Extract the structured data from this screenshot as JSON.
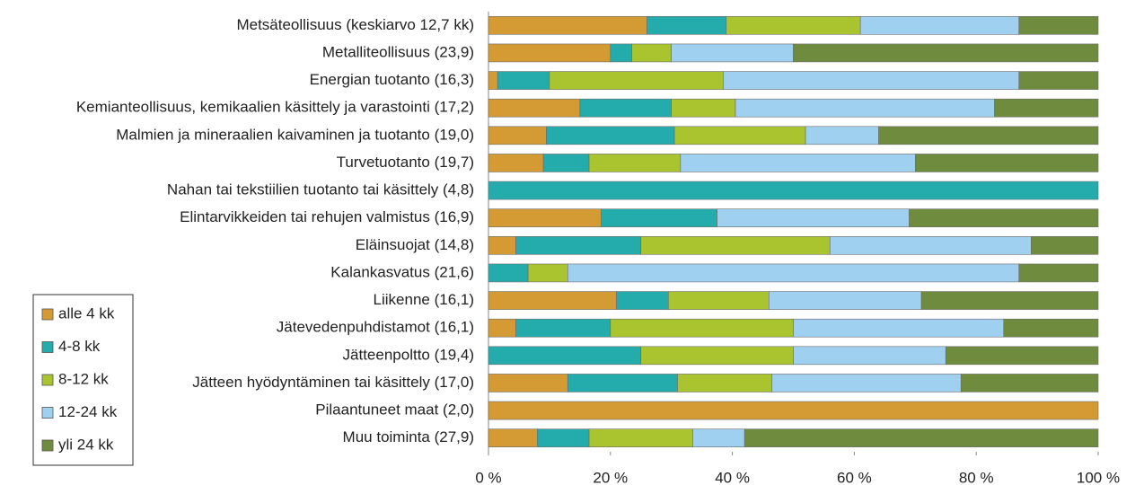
{
  "chart_data": {
    "type": "stacked-barh",
    "categories": [
      "Metsäteollisuus (keskiarvo 12,7 kk)",
      "Metalliteollisuus (23,9)",
      "Energian tuotanto (16,3)",
      "Kemianteollisuus, kemikaalien käsittely ja varastointi (17,2)",
      "Malmien ja mineraalien kaivaminen ja tuotanto (19,0)",
      "Turvetuotanto (19,7)",
      "Nahan tai tekstiilien tuotanto tai käsittely (4,8)",
      "Elintarvikkeiden tai rehujen valmistus (16,9)",
      "Eläinsuojat (14,8)",
      "Kalankasvatus (21,6)",
      "Liikenne (16,1)",
      "Jätevedenpuhdistamot (16,1)",
      "Jätteenpoltto (19,4)",
      "Jätteen hyödyntäminen tai käsittely (17,0)",
      "Pilaantuneet maat (2,0)",
      "Muu toiminta (27,9)"
    ],
    "series": [
      {
        "name": "alle 4 kk",
        "color": "#d49a34",
        "values": [
          26,
          20,
          1.5,
          15,
          9.5,
          9,
          0,
          18.5,
          4.5,
          0,
          21,
          4.5,
          0,
          13,
          100,
          8
        ]
      },
      {
        "name": "4-8 kk",
        "color": "#24abab",
        "values": [
          13,
          3.5,
          8.5,
          15,
          21,
          7.5,
          100,
          19,
          20.5,
          6.5,
          8.5,
          15.5,
          25,
          18,
          0,
          8.5
        ]
      },
      {
        "name": "8-12 kk",
        "color": "#a9c42f",
        "values": [
          22,
          6.5,
          28.5,
          10.5,
          21.5,
          15,
          0,
          0,
          31,
          6.5,
          16.5,
          30,
          25,
          15.5,
          0,
          17
        ]
      },
      {
        "name": "12-24 kk",
        "color": "#a0d0f0",
        "values": [
          26,
          20,
          48.5,
          42.5,
          12,
          38.5,
          0,
          31.5,
          33,
          74,
          25,
          34.5,
          25,
          31,
          0,
          8.5
        ]
      },
      {
        "name": "yli 24 kk",
        "color": "#6f8c3e",
        "values": [
          13,
          50,
          13,
          17,
          36,
          30,
          0,
          31,
          11,
          13,
          29,
          15.5,
          25,
          22.5,
          0,
          58
        ]
      }
    ],
    "xlim": [
      0,
      100
    ],
    "xticks": [
      {
        "value": 0,
        "label": "0 %"
      },
      {
        "value": 20,
        "label": "20 %"
      },
      {
        "value": 40,
        "label": "40 %"
      },
      {
        "value": 60,
        "label": "60 %"
      },
      {
        "value": 80,
        "label": "80 %"
      },
      {
        "value": 100,
        "label": "100 %"
      }
    ],
    "legend": "bottom-left"
  }
}
